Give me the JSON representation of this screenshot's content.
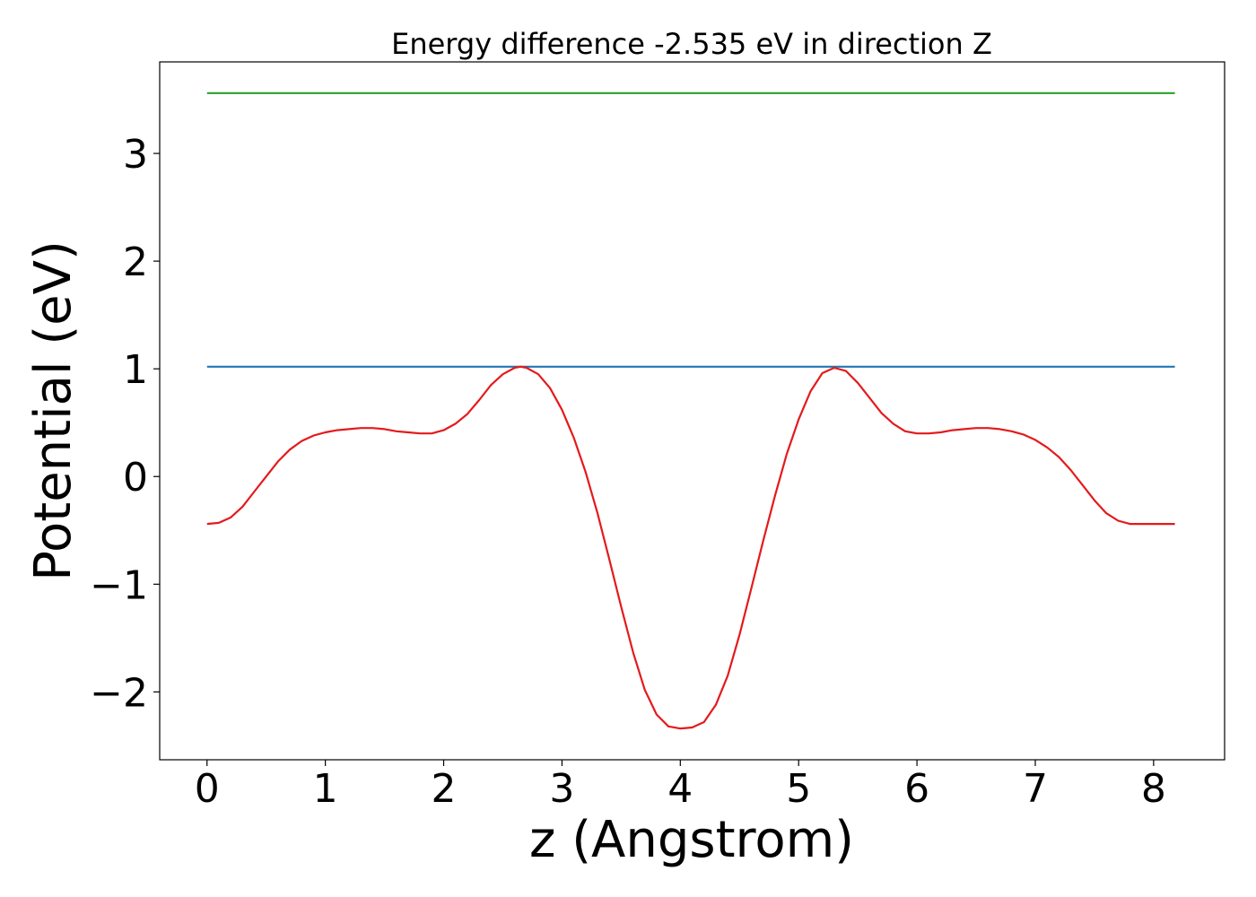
{
  "chart_data": {
    "type": "line",
    "title": "Energy difference -2.535 eV in direction Z",
    "xlabel": "z (Angstrom)",
    "ylabel": "Potential (eV)",
    "xlim": [
      -0.4,
      8.6
    ],
    "ylim": [
      -2.63,
      3.85
    ],
    "xticks": [
      0,
      1,
      2,
      3,
      4,
      5,
      6,
      7,
      8
    ],
    "yticks": [
      -2,
      -1,
      0,
      1,
      2,
      3
    ],
    "xtick_labels": [
      "0",
      "1",
      "2",
      "3",
      "4",
      "5",
      "6",
      "7",
      "8"
    ],
    "ytick_labels": [
      "−2",
      "−1",
      "0",
      "1",
      "2",
      "3"
    ],
    "grid": false,
    "legend": "none",
    "series": [
      {
        "color": "#2ca02c",
        "x": [
          0,
          8.18
        ],
        "y": [
          3.56,
          3.56
        ]
      },
      {
        "color": "#1f77b4",
        "x": [
          0,
          8.18
        ],
        "y": [
          1.02,
          1.02
        ]
      },
      {
        "color": "#e41a1c",
        "x": [
          0,
          0.1,
          0.2,
          0.3,
          0.4,
          0.5,
          0.6,
          0.7,
          0.8,
          0.9,
          1.0,
          1.1,
          1.2,
          1.3,
          1.4,
          1.5,
          1.6,
          1.7,
          1.8,
          1.9,
          2.0,
          2.1,
          2.2,
          2.3,
          2.4,
          2.5,
          2.6,
          2.65,
          2.7,
          2.8,
          2.9,
          3.0,
          3.1,
          3.2,
          3.3,
          3.4,
          3.5,
          3.6,
          3.7,
          3.8,
          3.9,
          4.0,
          4.1,
          4.2,
          4.3,
          4.4,
          4.5,
          4.6,
          4.7,
          4.8,
          4.9,
          5.0,
          5.1,
          5.2,
          5.3,
          5.4,
          5.5,
          5.6,
          5.7,
          5.8,
          5.9,
          6.0,
          6.1,
          6.2,
          6.3,
          6.4,
          6.5,
          6.6,
          6.7,
          6.8,
          6.9,
          7.0,
          7.1,
          7.2,
          7.3,
          7.4,
          7.5,
          7.6,
          7.7,
          7.8,
          7.9,
          8.0,
          8.1,
          8.18
        ],
        "y": [
          -0.44,
          -0.43,
          -0.38,
          -0.28,
          -0.14,
          0.0,
          0.14,
          0.25,
          0.33,
          0.38,
          0.41,
          0.43,
          0.44,
          0.45,
          0.45,
          0.44,
          0.42,
          0.41,
          0.4,
          0.4,
          0.43,
          0.49,
          0.58,
          0.71,
          0.85,
          0.95,
          1.01,
          1.02,
          1.01,
          0.95,
          0.82,
          0.62,
          0.36,
          0.04,
          -0.34,
          -0.77,
          -1.21,
          -1.63,
          -1.98,
          -2.21,
          -2.32,
          -2.34,
          -2.33,
          -2.28,
          -2.12,
          -1.85,
          -1.47,
          -1.04,
          -0.6,
          -0.18,
          0.21,
          0.53,
          0.79,
          0.96,
          1.01,
          0.98,
          0.87,
          0.73,
          0.59,
          0.49,
          0.42,
          0.4,
          0.4,
          0.41,
          0.43,
          0.44,
          0.45,
          0.45,
          0.44,
          0.42,
          0.39,
          0.34,
          0.27,
          0.18,
          0.06,
          -0.08,
          -0.22,
          -0.34,
          -0.41,
          -0.44,
          -0.44,
          -0.44,
          -0.44,
          -0.44
        ]
      }
    ]
  }
}
